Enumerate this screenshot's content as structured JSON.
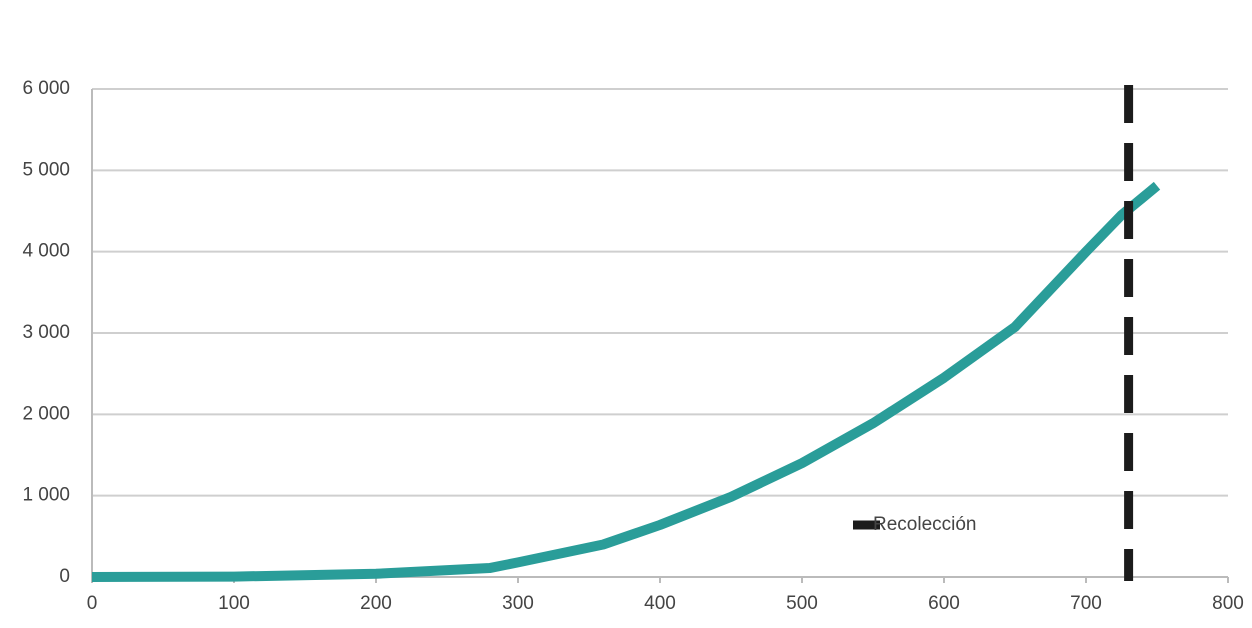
{
  "chart_data": {
    "type": "line",
    "x": [
      0,
      100,
      200,
      280,
      300,
      360,
      400,
      450,
      500,
      550,
      600,
      650,
      700,
      725,
      750
    ],
    "series": [
      {
        "color": "#2a9d99",
        "values": [
          0,
          5,
          40,
          110,
          180,
          400,
          640,
          985,
          1400,
          1890,
          2450,
          3075,
          4000,
          4450,
          4810
        ]
      }
    ],
    "reference_line": {
      "name": "Recolección",
      "x": 730,
      "color": "#1c1c1c"
    },
    "xlim": [
      0,
      800
    ],
    "xticks": [
      0,
      100,
      200,
      300,
      400,
      500,
      600,
      700,
      800
    ],
    "ylim": [
      0,
      6000
    ],
    "yticks": [
      0,
      {
        "value": 1000,
        "label": "1 000"
      },
      {
        "value": 2000,
        "label": "2 000"
      },
      {
        "value": 3000,
        "label": "3 000"
      },
      {
        "value": 4000,
        "label": "4 000"
      },
      {
        "value": 5000,
        "label": "5 000"
      },
      {
        "value": 6000,
        "label": "6 000"
      }
    ],
    "grid": true
  }
}
